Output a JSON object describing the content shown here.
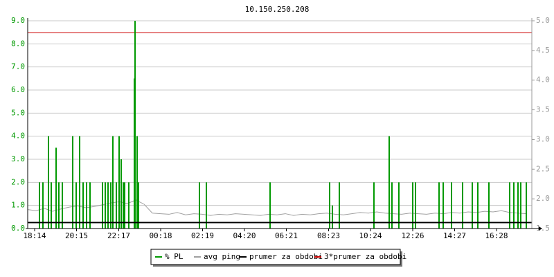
{
  "chart_data": {
    "type": "line",
    "title": "10.150.250.208",
    "xlim": [
      0,
      1456
    ],
    "xticks": [
      {
        "value": 20,
        "label": "18:14"
      },
      {
        "value": 141,
        "label": "20:15"
      },
      {
        "value": 263,
        "label": "22:17"
      },
      {
        "value": 384,
        "label": "00:18"
      },
      {
        "value": 505,
        "label": "02:19"
      },
      {
        "value": 626,
        "label": "04:20"
      },
      {
        "value": 747,
        "label": "06:21"
      },
      {
        "value": 869,
        "label": "08:23"
      },
      {
        "value": 990,
        "label": "10:24"
      },
      {
        "value": 1112,
        "label": "12:26"
      },
      {
        "value": 1233,
        "label": "14:27"
      },
      {
        "value": 1354,
        "label": "16:28"
      }
    ],
    "ylim": [
      0,
      9
    ],
    "yticks": [
      {
        "value": 0,
        "label": "0.0"
      },
      {
        "value": 1,
        "label": "1.0"
      },
      {
        "value": 2,
        "label": "2.0"
      },
      {
        "value": 3,
        "label": "3.0"
      },
      {
        "value": 4,
        "label": "4.0"
      },
      {
        "value": 5,
        "label": "5.0"
      },
      {
        "value": 6,
        "label": "6.0"
      },
      {
        "value": 7,
        "label": "7.0"
      },
      {
        "value": 8,
        "label": "8.0"
      },
      {
        "value": 9,
        "label": "9.0"
      }
    ],
    "y2lim": [
      1.5,
      5.0
    ],
    "y2ticks": [
      1.5,
      {
        "value": 2,
        "label": "2.0"
      },
      2.5,
      {
        "value": 3,
        "label": "3.0"
      },
      3.5,
      {
        "value": 4,
        "label": "4.0"
      },
      4.5,
      {
        "value": 5,
        "label": "5.0"
      }
    ],
    "grid": true,
    "legend": "bottom",
    "series": [
      {
        "name": "% PL",
        "color": "#009900",
        "axis": "y",
        "x": [
          34,
          44,
          60,
          68,
          82,
          90,
          100,
          130,
          140,
          150,
          160,
          170,
          180,
          216,
          224,
          232,
          240,
          246,
          256,
          264,
          270,
          276,
          280,
          292,
          308,
          310,
          316,
          320,
          496,
          516,
          700,
          872,
          880,
          900,
          1000,
          1044,
          1052,
          1072,
          1112,
          1120,
          1188,
          1200,
          1224,
          1256,
          1284,
          1300,
          1332,
          1392,
          1404,
          1416,
          1424,
          1440
        ],
        "values": [
          2,
          2,
          4,
          2,
          3.5,
          2,
          2,
          4,
          2,
          4,
          2,
          2,
          2,
          2,
          2,
          2,
          2,
          4,
          2,
          4,
          3,
          2,
          2,
          2,
          6.5,
          9,
          4,
          2,
          2,
          2,
          2,
          2,
          1,
          2,
          2,
          4,
          2,
          2,
          2,
          2,
          2,
          2,
          2,
          2,
          2,
          2,
          2,
          2,
          2,
          2,
          2,
          2
        ]
      },
      {
        "name": "avg ping",
        "color": "#a0a0a0",
        "axis": "y2",
        "x": [
          0,
          24,
          48,
          72,
          96,
          120,
          144,
          168,
          192,
          216,
          240,
          264,
          288,
          312,
          336,
          360,
          384,
          408,
          432,
          456,
          480,
          504,
          528,
          552,
          576,
          600,
          624,
          648,
          672,
          696,
          720,
          744,
          768,
          792,
          816,
          840,
          864,
          888,
          912,
          936,
          960,
          984,
          1008,
          1032,
          1056,
          1080,
          1104,
          1128,
          1152,
          1176,
          1200,
          1224,
          1248,
          1272,
          1296,
          1320,
          1344,
          1368,
          1392,
          1416,
          1440
        ],
        "values": [
          1.82,
          1.8,
          1.84,
          1.79,
          1.83,
          1.86,
          1.88,
          1.85,
          1.87,
          1.9,
          1.93,
          1.95,
          1.92,
          1.98,
          1.91,
          1.76,
          1.75,
          1.74,
          1.77,
          1.73,
          1.75,
          1.74,
          1.72,
          1.74,
          1.73,
          1.75,
          1.74,
          1.73,
          1.72,
          1.74,
          1.73,
          1.75,
          1.72,
          1.74,
          1.73,
          1.75,
          1.76,
          1.74,
          1.73,
          1.75,
          1.77,
          1.76,
          1.78,
          1.76,
          1.75,
          1.74,
          1.76,
          1.75,
          1.74,
          1.76,
          1.75,
          1.77,
          1.76,
          1.78,
          1.77,
          1.79,
          1.78,
          1.8,
          1.77,
          1.76,
          1.75
        ]
      },
      {
        "name": "prumer za obdobi",
        "color": "#000000",
        "axis": "y2",
        "value": 1.6
      },
      {
        "name": "3*prumer za obdobi",
        "color": "#cc0000",
        "axis": "y2",
        "value": 4.8
      }
    ]
  }
}
